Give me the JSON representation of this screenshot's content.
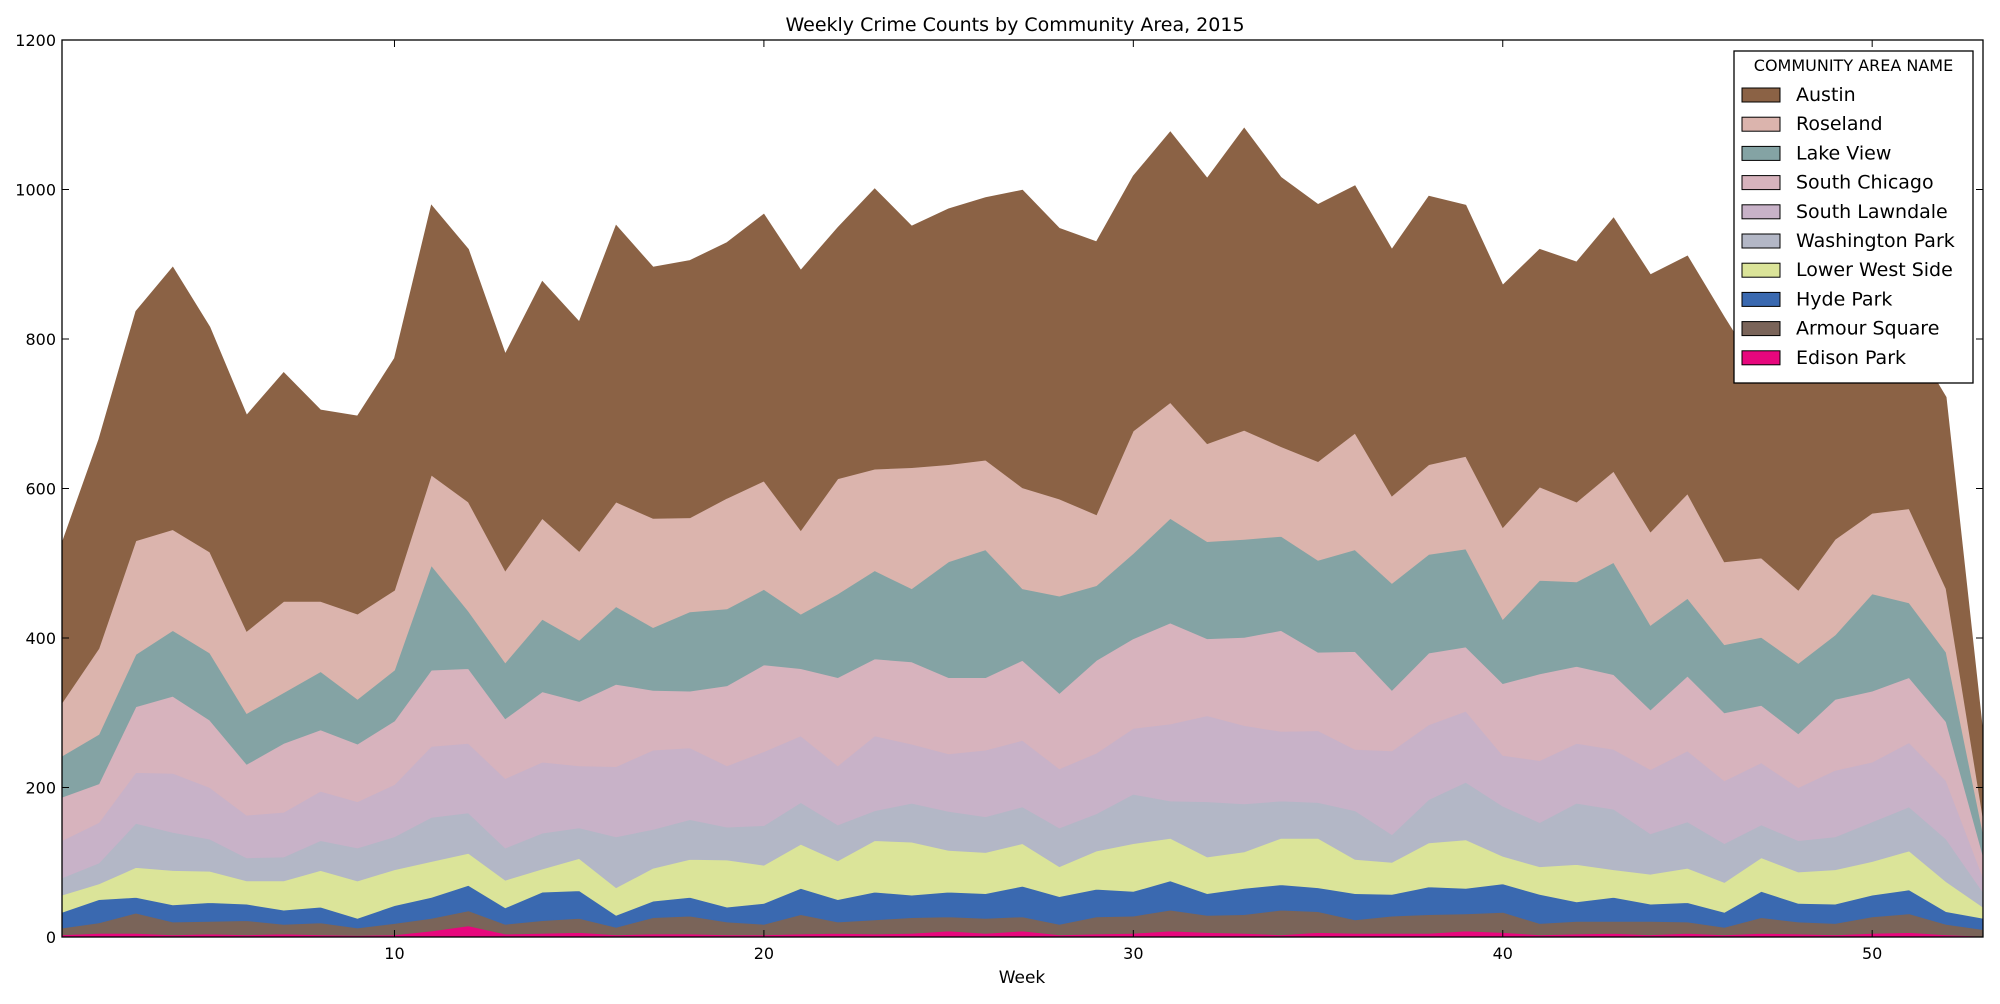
{
  "chart_data": {
    "type": "area",
    "title": "Weekly Crime Counts by Community Area, 2015",
    "xlabel": "Week",
    "ylabel": "",
    "xlim": [
      1,
      53
    ],
    "ylim": [
      0,
      1200
    ],
    "x_ticks": [
      10,
      20,
      30,
      40,
      50
    ],
    "y_ticks": [
      0,
      200,
      400,
      600,
      800,
      1000,
      1200
    ],
    "stacked": true,
    "grid": false,
    "legend": {
      "title": "COMMUNITY AREA NAME",
      "placement": "top-right"
    },
    "x": [
      1,
      2,
      3,
      4,
      5,
      6,
      7,
      8,
      9,
      10,
      11,
      12,
      13,
      14,
      15,
      16,
      17,
      18,
      19,
      20,
      21,
      22,
      23,
      24,
      25,
      26,
      27,
      28,
      29,
      30,
      31,
      32,
      33,
      34,
      35,
      36,
      37,
      38,
      39,
      40,
      41,
      42,
      43,
      44,
      45,
      46,
      47,
      48,
      49,
      50,
      51,
      52,
      53
    ],
    "series": [
      {
        "name": "Edison Park",
        "color": "#e7077d",
        "values": [
          3,
          5,
          5,
          3,
          4,
          3,
          4,
          3,
          2,
          3,
          8,
          15,
          4,
          5,
          6,
          3,
          4,
          4,
          3,
          3,
          4,
          5,
          4,
          5,
          8,
          5,
          8,
          3,
          4,
          5,
          8,
          6,
          5,
          3,
          6,
          5,
          5,
          5,
          8,
          6,
          3,
          4,
          5,
          3,
          5,
          3,
          5,
          4,
          3,
          5,
          6,
          3,
          1
        ]
      },
      {
        "name": "Armour Square",
        "color": "#7a6459",
        "values": [
          9,
          14,
          27,
          17,
          17,
          19,
          13,
          16,
          10,
          15,
          17,
          20,
          13,
          17,
          19,
          10,
          22,
          24,
          17,
          14,
          26,
          15,
          19,
          21,
          19,
          20,
          19,
          14,
          23,
          23,
          28,
          23,
          25,
          33,
          28,
          18,
          23,
          25,
          23,
          27,
          15,
          17,
          16,
          18,
          15,
          10,
          21,
          16,
          15,
          22,
          25,
          14,
          9
        ]
      },
      {
        "name": "Hyde Park",
        "color": "#3a69b0",
        "values": [
          21,
          31,
          21,
          23,
          25,
          22,
          19,
          21,
          13,
          24,
          28,
          34,
          22,
          38,
          37,
          16,
          22,
          25,
          20,
          28,
          35,
          30,
          37,
          30,
          33,
          33,
          41,
          37,
          37,
          33,
          39,
          29,
          35,
          34,
          32,
          35,
          29,
          37,
          34,
          38,
          39,
          26,
          32,
          23,
          26,
          20,
          35,
          25,
          26,
          29,
          32,
          17,
          15
        ]
      },
      {
        "name": "Lower West Side",
        "color": "#dbe499",
        "values": [
          23,
          21,
          40,
          46,
          42,
          31,
          39,
          49,
          50,
          48,
          48,
          43,
          37,
          31,
          43,
          37,
          44,
          51,
          63,
          51,
          59,
          52,
          69,
          71,
          56,
          55,
          57,
          40,
          51,
          64,
          57,
          49,
          49,
          62,
          66,
          46,
          43,
          59,
          65,
          37,
          37,
          50,
          37,
          40,
          46,
          40,
          45,
          42,
          46,
          45,
          52,
          40,
          15
        ]
      },
      {
        "name": "Washington Park",
        "color": "#b3b7c6",
        "values": [
          23,
          28,
          59,
          51,
          43,
          31,
          32,
          40,
          44,
          44,
          59,
          54,
          43,
          48,
          41,
          68,
          52,
          53,
          44,
          53,
          56,
          48,
          40,
          52,
          52,
          48,
          49,
          52,
          50,
          66,
          50,
          74,
          64,
          50,
          48,
          65,
          37,
          58,
          77,
          67,
          59,
          82,
          81,
          54,
          62,
          52,
          44,
          42,
          44,
          53,
          59,
          57,
          20
        ]
      },
      {
        "name": "South Lawndale",
        "color": "#c8b2c8",
        "values": [
          50,
          54,
          68,
          79,
          69,
          57,
          60,
          66,
          62,
          70,
          95,
          93,
          93,
          95,
          83,
          94,
          106,
          96,
          82,
          99,
          89,
          79,
          100,
          79,
          77,
          89,
          89,
          79,
          81,
          88,
          103,
          115,
          105,
          93,
          96,
          82,
          112,
          100,
          95,
          68,
          83,
          80,
          80,
          86,
          95,
          84,
          83,
          71,
          89,
          80,
          86,
          78,
          20
        ]
      },
      {
        "name": "South Chicago",
        "color": "#d7b3bd",
        "values": [
          58,
          52,
          88,
          103,
          90,
          68,
          92,
          82,
          77,
          85,
          102,
          100,
          80,
          94,
          86,
          110,
          80,
          76,
          107,
          116,
          90,
          118,
          103,
          110,
          102,
          97,
          107,
          101,
          124,
          120,
          135,
          103,
          118,
          135,
          105,
          131,
          81,
          96,
          86,
          96,
          116,
          103,
          100,
          80,
          100,
          91,
          77,
          72,
          95,
          95,
          87,
          79,
          29
        ]
      },
      {
        "name": "Lake View",
        "color": "#84a3a4",
        "values": [
          55,
          66,
          70,
          88,
          90,
          68,
          68,
          78,
          60,
          68,
          140,
          77,
          75,
          97,
          82,
          104,
          84,
          106,
          103,
          101,
          73,
          112,
          118,
          98,
          155,
          171,
          96,
          130,
          100,
          114,
          140,
          130,
          131,
          126,
          123,
          136,
          143,
          132,
          131,
          86,
          125,
          113,
          150,
          113,
          104,
          91,
          91,
          94,
          86,
          130,
          100,
          93,
          30
        ]
      },
      {
        "name": "Roseland",
        "color": "#dbb4ad",
        "values": [
          71,
          115,
          152,
          135,
          135,
          110,
          122,
          94,
          114,
          107,
          121,
          146,
          123,
          135,
          119,
          140,
          146,
          126,
          148,
          145,
          112,
          154,
          136,
          162,
          130,
          120,
          135,
          130,
          95,
          164,
          155,
          131,
          146,
          120,
          132,
          156,
          117,
          120,
          124,
          123,
          125,
          107,
          122,
          125,
          140,
          111,
          106,
          98,
          128,
          108,
          126,
          85,
          21
        ]
      },
      {
        "name": "Austin",
        "color": "#8b6245",
        "values": [
          214,
          280,
          307,
          351,
          301,
          289,
          306,
          256,
          265,
          310,
          361,
          338,
          290,
          317,
          307,
          370,
          336,
          344,
          342,
          357,
          348,
          336,
          375,
          323,
          342,
          351,
          398,
          362,
          365,
          341,
          362,
          355,
          404,
          360,
          344,
          331,
          330,
          359,
          336,
          324,
          318,
          321,
          339,
          344,
          318,
          327,
          243,
          283,
          250,
          252,
          232,
          256,
          112
        ]
      }
    ]
  }
}
